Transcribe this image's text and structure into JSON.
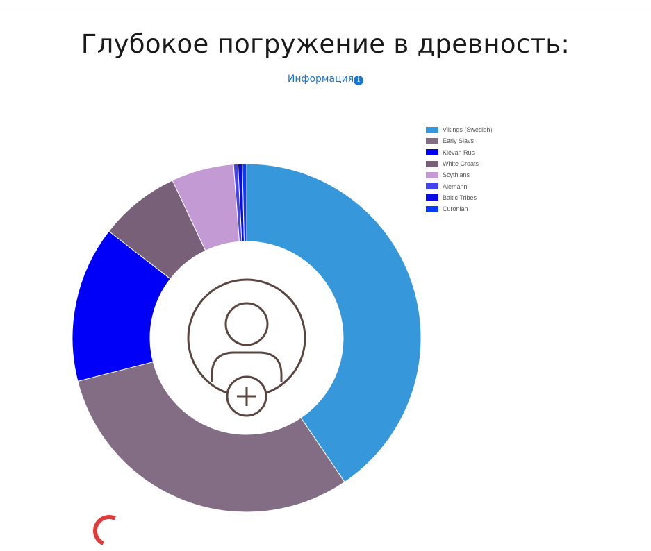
{
  "page": {
    "title": "Глубокое погружение в древность:",
    "info_label": "Информация",
    "info_icon": "info-icon"
  },
  "center_icon": "add-user-icon",
  "colors": {
    "link": "#1877d6",
    "center_icon_stroke": "#5a4540"
  },
  "chart_data": {
    "type": "pie",
    "donut": true,
    "legend_position": "top-right",
    "series": [
      {
        "name": "Vikings (Swedish)",
        "value": 40.5,
        "color": "#3698db"
      },
      {
        "name": "Early Slavs",
        "value": 30.5,
        "color": "#826d85"
      },
      {
        "name": "Kievan Rus",
        "value": 14.5,
        "color": "#0000f8"
      },
      {
        "name": "White Croats",
        "value": 7.5,
        "color": "#776078"
      },
      {
        "name": "Scythians",
        "value": 5.8,
        "color": "#c39ad4"
      },
      {
        "name": "Alemanni",
        "value": 0.4,
        "color": "#4444ee"
      },
      {
        "name": "Baltic Tribes",
        "value": 0.4,
        "color": "#0a0ae8"
      },
      {
        "name": "Curonian",
        "value": 0.4,
        "color": "#0a3af5"
      }
    ]
  }
}
